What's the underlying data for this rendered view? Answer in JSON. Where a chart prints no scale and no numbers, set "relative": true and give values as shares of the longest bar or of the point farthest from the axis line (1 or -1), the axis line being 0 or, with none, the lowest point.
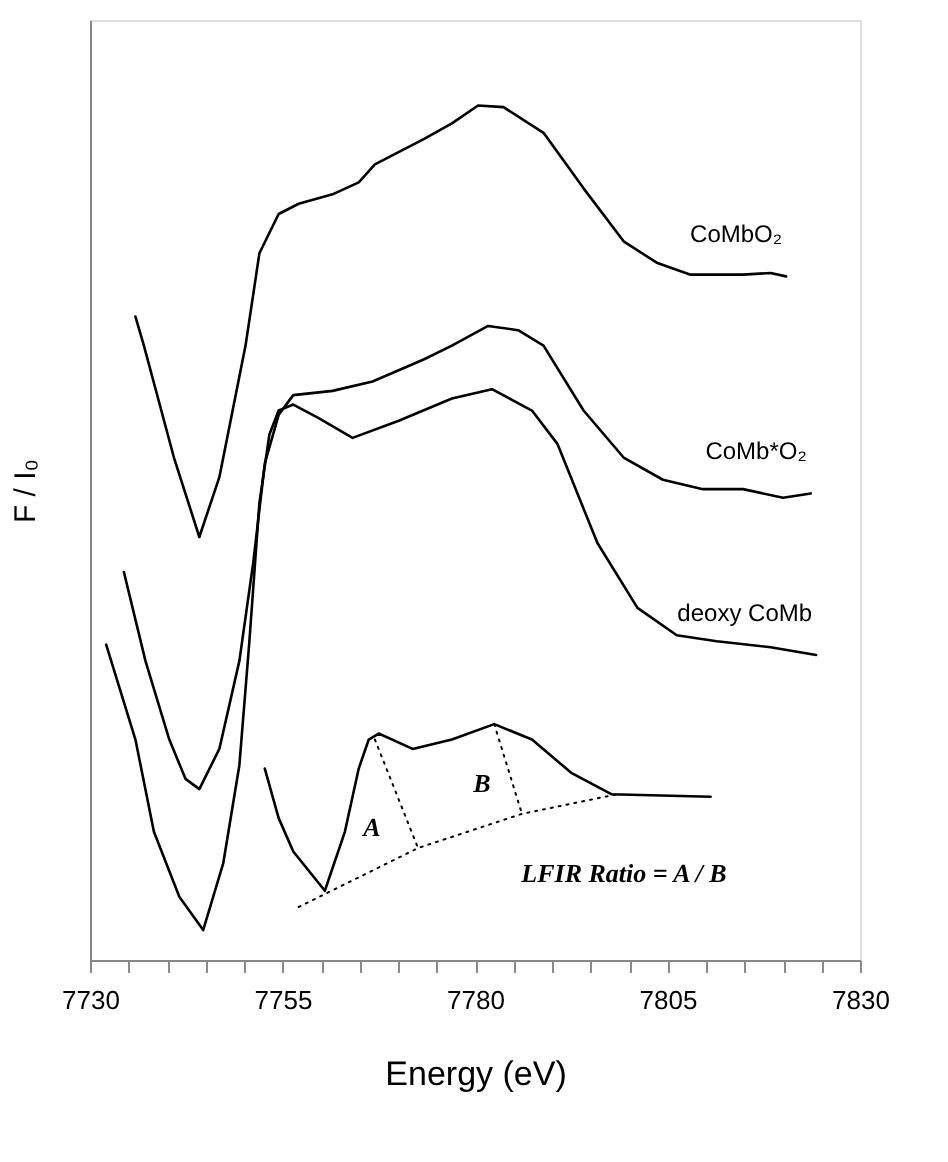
{
  "chart_data": {
    "type": "line",
    "relative": true,
    "xlabel": "Energy (eV)",
    "ylabel": "F / I₀",
    "xlim": [
      7730,
      7830
    ],
    "xticks": [
      7730,
      {
        "value": 7735,
        "label": null
      },
      {
        "value": 7740,
        "label": null
      },
      {
        "value": 7745,
        "label": null
      },
      {
        "value": 7750,
        "label": null
      },
      7755,
      {
        "value": 7760,
        "label": null
      },
      {
        "value": 7765,
        "label": null
      },
      {
        "value": 7770,
        "label": null
      },
      {
        "value": 7775,
        "label": null
      },
      7780,
      {
        "value": 7785,
        "label": null
      },
      {
        "value": 7790,
        "label": null
      },
      {
        "value": 7795,
        "label": null
      },
      {
        "value": 7800,
        "label": null
      },
      7805,
      {
        "value": 7810,
        "label": null
      },
      {
        "value": 7815,
        "label": null
      },
      {
        "value": 7820,
        "label": null
      },
      {
        "value": 7825,
        "label": null
      },
      7830
    ],
    "tick_labels": "x",
    "grid": false,
    "legend": false,
    "marker": "none",
    "line_style": "solid",
    "series": [
      {
        "name": "CoMbO₂",
        "color": "#000000",
        "x": [
          7735.9,
          7737.0,
          7740.9,
          7744.2,
          7746.8,
          7750.2,
          7752.0,
          7754.5,
          7757.1,
          7761.5,
          7764.9,
          7767.0,
          7773.4,
          7777.0,
          7780.4,
          7783.7,
          7788.9,
          7794.1,
          7799.3,
          7803.6,
          7808.0,
          7814.8,
          7818.4,
          7820.4
        ],
        "values": [
          0.753,
          0.719,
          0.588,
          0.495,
          0.565,
          0.719,
          0.827,
          0.873,
          0.885,
          0.896,
          0.91,
          0.931,
          0.961,
          0.979,
          1.0,
          0.998,
          0.968,
          0.903,
          0.841,
          0.816,
          0.802,
          0.802,
          0.804,
          0.8
        ]
      },
      {
        "name": "CoMb*O₂",
        "color": "#000000",
        "x": [
          7734.4,
          7737.2,
          7740.3,
          7742.4,
          7744.2,
          7746.8,
          7749.4,
          7751.2,
          7752.7,
          7754.5,
          7756.4,
          7761.5,
          7766.7,
          7773.4,
          7777.0,
          7781.7,
          7785.6,
          7788.9,
          7794.1,
          7799.3,
          7804.4,
          7809.6,
          7814.8,
          7820.0,
          7823.6
        ],
        "values": [
          0.454,
          0.35,
          0.258,
          0.212,
          0.2,
          0.247,
          0.35,
          0.465,
          0.581,
          0.638,
          0.661,
          0.666,
          0.677,
          0.703,
          0.719,
          0.742,
          0.737,
          0.719,
          0.643,
          0.588,
          0.562,
          0.551,
          0.551,
          0.541,
          0.546
        ]
      },
      {
        "name": "deoxy CoMb",
        "color": "#000000",
        "x": [
          7732.1,
          7735.9,
          7738.3,
          7741.6,
          7744.7,
          7747.3,
          7749.4,
          7750.7,
          7752.0,
          7753.3,
          7754.5,
          7756.4,
          7759.7,
          7764.1,
          7770.1,
          7777.0,
          7782.2,
          7787.4,
          7790.7,
          7795.9,
          7801.1,
          7806.2,
          7811.4,
          7818.4,
          7824.3
        ],
        "values": [
          0.369,
          0.258,
          0.15,
          0.074,
          0.035,
          0.113,
          0.228,
          0.373,
          0.535,
          0.615,
          0.643,
          0.65,
          0.634,
          0.611,
          0.631,
          0.657,
          0.668,
          0.643,
          0.604,
          0.488,
          0.412,
          0.38,
          0.373,
          0.366,
          0.357
        ]
      },
      {
        "color": "#000000",
        "x": [
          7752.7,
          7754.5,
          7756.4,
          7760.5,
          7763.1,
          7764.9,
          7766.2,
          7767.5,
          7771.9,
          7777.0,
          7782.5,
          7787.4,
          7792.5,
          7797.7,
          7810.6
        ],
        "values": [
          0.224,
          0.166,
          0.127,
          0.081,
          0.15,
          0.224,
          0.258,
          0.265,
          0.247,
          0.258,
          0.276,
          0.258,
          0.219,
          0.194,
          0.191
        ]
      },
      {
        "color": "#000000",
        "line_style": "dotted",
        "x": [
          7757.1,
          7772.6,
          7786.1,
          7798.5
        ],
        "values": [
          0.062,
          0.131,
          0.171,
          0.194
        ]
      },
      {
        "color": "#000000",
        "line_style": "dotted",
        "x": [
          7767.0,
          7772.6
        ],
        "values": [
          0.258,
          0.131
        ]
      },
      {
        "color": "#000000",
        "line_style": "dotted",
        "x": [
          7782.5,
          7786.1
        ],
        "values": [
          0.276,
          0.171
        ]
      }
    ],
    "annotations": [
      "A",
      "B",
      "LFIR Ratio = A / B"
    ]
  }
}
